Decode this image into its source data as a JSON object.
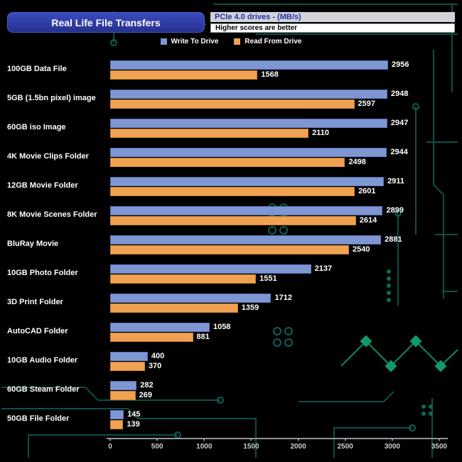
{
  "header": {
    "title": "Real Life File Transfers",
    "subtitle1": "PCIe 4.0 drives - (MB/s)",
    "subtitle2": "Higher scores are better"
  },
  "legend": {
    "write": "Write To  Drive",
    "read": "Read From  Drive"
  },
  "colors": {
    "write_bar": "#7e96d2",
    "read_bar": "#f0a152",
    "title_bg": "#2c38a0",
    "subtitle_text": "#2531a8"
  },
  "chart_data": {
    "type": "bar",
    "orientation": "horizontal",
    "title": "Real Life File Transfers",
    "xlabel": "MB/s",
    "ylabel": "",
    "xlim": [
      0,
      3500
    ],
    "x_ticks": [
      0,
      500,
      1000,
      1500,
      2000,
      2500,
      3000,
      3500
    ],
    "grid": false,
    "legend_position": "top",
    "categories": [
      "100GB Data File",
      "5GB (1.5bn pixel) image",
      "60GB iso Image",
      "4K Movie Clips Folder",
      "12GB Movie Folder",
      "8K Movie Scenes Folder",
      "BluRay Movie",
      "10GB Photo Folder",
      "3D Print Folder",
      "AutoCAD Folder",
      "10GB Audio Folder",
      "60GB Steam Folder",
      "50GB File Folder"
    ],
    "series": [
      {
        "name": "Write To Drive",
        "color": "#7e96d2",
        "values": [
          2956,
          2948,
          2947,
          2944,
          2911,
          2899,
          2881,
          2137,
          1712,
          1058,
          400,
          282,
          145
        ]
      },
      {
        "name": "Read From Drive",
        "color": "#f0a152",
        "values": [
          1568,
          2597,
          2110,
          2498,
          2601,
          2614,
          2540,
          1551,
          1359,
          881,
          370,
          269,
          139
        ]
      }
    ]
  }
}
